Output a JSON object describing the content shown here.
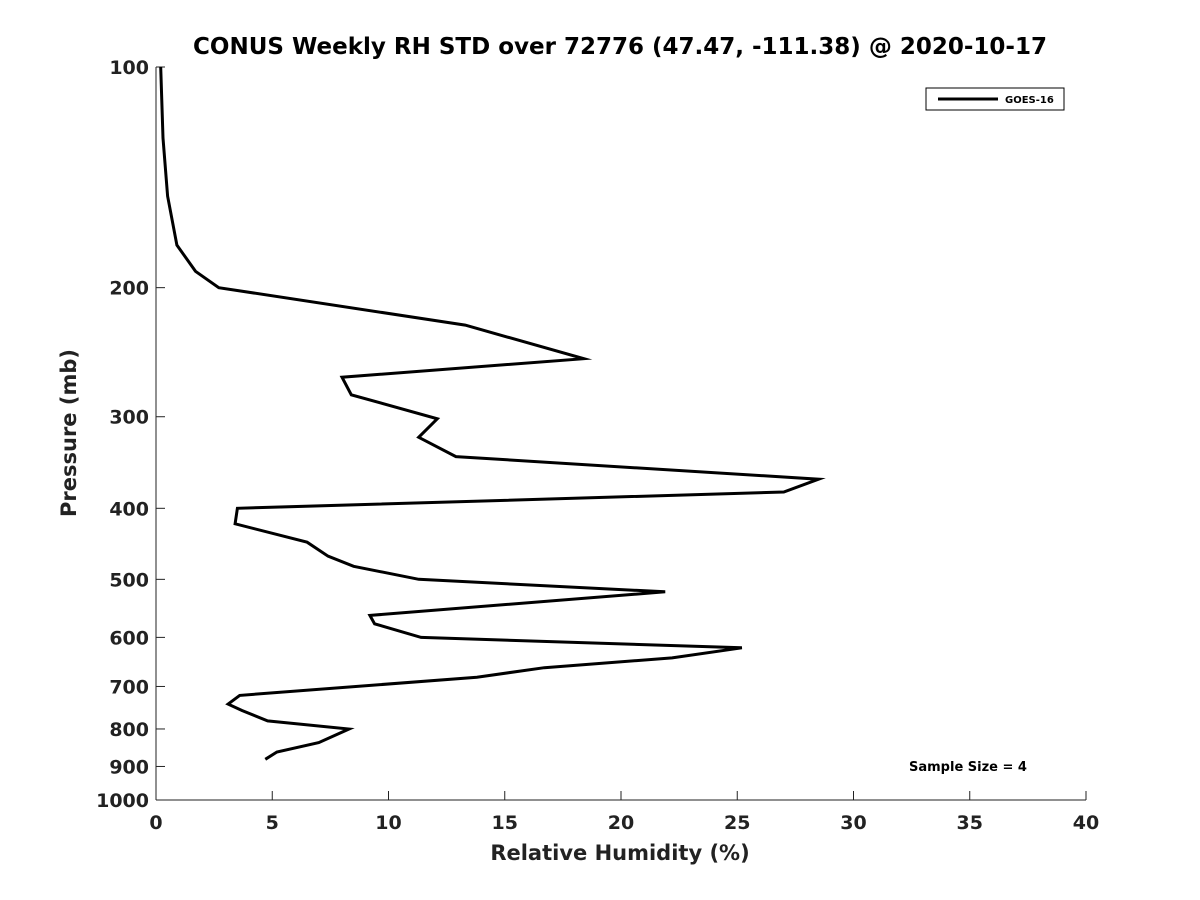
{
  "chart_data": {
    "type": "line",
    "title": "CONUS Weekly RH STD over 72776 (47.47, -111.38) @ 2020-10-17",
    "xlabel": "Relative Humidity (%)",
    "ylabel": "Pressure (mb)",
    "xlim": [
      0,
      40
    ],
    "ylim": [
      100,
      1000
    ],
    "y_scale": "log",
    "y_reversed": true,
    "grid": false,
    "legend_position": "top-right",
    "x_ticks": [
      0,
      5,
      10,
      15,
      20,
      25,
      30,
      35,
      40
    ],
    "y_ticks": [
      100,
      200,
      300,
      400,
      500,
      600,
      700,
      800,
      900,
      1000
    ],
    "series": [
      {
        "name": "GOES-16",
        "color": "#000000",
        "x": [
          0.2,
          0.3,
          0.5,
          0.9,
          1.7,
          2.7,
          13.3,
          18.4,
          8.0,
          8.4,
          12.1,
          11.3,
          12.9,
          28.5,
          27.0,
          3.5,
          3.4,
          6.5,
          7.4,
          8.5,
          11.3,
          21.9,
          9.2,
          9.4,
          11.4,
          25.2,
          22.2,
          16.7,
          13.8,
          3.6,
          3.1,
          3.7,
          4.8,
          8.3,
          7.0,
          5.2,
          4.7
        ],
        "y": [
          100,
          125,
          150,
          175,
          190,
          200,
          225,
          250,
          265,
          280,
          302,
          320,
          340,
          365,
          380,
          400,
          420,
          445,
          465,
          480,
          500,
          520,
          560,
          575,
          600,
          620,
          640,
          660,
          680,
          720,
          740,
          755,
          780,
          800,
          835,
          860,
          880
        ]
      }
    ],
    "annotation": "Sample Size = 4"
  }
}
